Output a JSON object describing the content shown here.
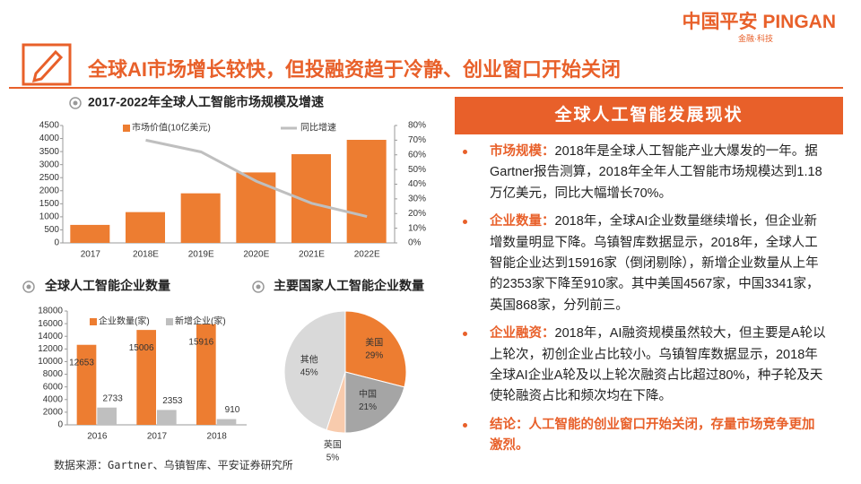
{
  "header": {
    "title": "全球AI市场增长较快，但投融资趋于冷静、创业窗口开始关闭",
    "logo": "中国平安 PINGAN",
    "logo_sub": "金融·科技"
  },
  "chart_data": [
    {
      "type": "bar",
      "title": "2017-2022年全球人工智能市场规模及增速",
      "categories": [
        "2017",
        "2018E",
        "2019E",
        "2020E",
        "2021E",
        "2022E"
      ],
      "series": [
        {
          "name": "市场价值(10亿美元)",
          "color": "#ED7D31",
          "values": [
            690,
            1180,
            1900,
            2700,
            3400,
            3950
          ]
        },
        {
          "name": "同比增速",
          "color": "#BFBFBF",
          "type": "line",
          "axis": "y2",
          "values": [
            null,
            70,
            62,
            42,
            27,
            18
          ]
        }
      ],
      "ylim": [
        0,
        4500
      ],
      "yticks": [
        0,
        500,
        1000,
        1500,
        2000,
        2500,
        3000,
        3500,
        4000,
        4500
      ],
      "y2lim": [
        0,
        80
      ],
      "y2ticks": [
        {
          "value": 0,
          "label": "0%"
        },
        {
          "value": 10,
          "label": "10%"
        },
        {
          "value": 20,
          "label": "20%"
        },
        {
          "value": 30,
          "label": "30%"
        },
        {
          "value": 40,
          "label": "40%"
        },
        {
          "value": 50,
          "label": "50%"
        },
        {
          "value": 60,
          "label": "60%"
        },
        {
          "value": 70,
          "label": "70%"
        },
        {
          "value": 80,
          "label": "80%"
        }
      ]
    },
    {
      "type": "bar",
      "title": "全球人工智能企业数量",
      "categories": [
        "2016",
        "2017",
        "2018"
      ],
      "series": [
        {
          "name": "企业数量(家)",
          "color": "#ED7D31",
          "values": [
            12653,
            15006,
            15916
          ]
        },
        {
          "name": "新增企业(家)",
          "color": "#BFBFBF",
          "values": [
            2733,
            2353,
            910
          ]
        }
      ],
      "ylim": [
        0,
        18000
      ],
      "yticks": [
        0,
        2000,
        4000,
        6000,
        8000,
        10000,
        12000,
        14000,
        16000,
        18000
      ],
      "data_labels": true
    },
    {
      "type": "pie",
      "title": "主要国家人工智能企业数量",
      "categories": [
        "美国",
        "中国",
        "英国",
        "其他"
      ],
      "values": [
        29,
        21,
        5,
        45
      ],
      "value_labels": [
        "29%",
        "21%",
        "5%",
        "45%"
      ],
      "colors": [
        "#ED7D31",
        "#A5A5A5",
        "#F8CBAD",
        "#D9D9D9"
      ]
    }
  ],
  "panel": {
    "title": "全球人工智能发展现状",
    "items": [
      {
        "label": "市场规模：",
        "text": "2018年是全球人工智能产业大爆发的一年。据Gartner报告测算，2018年全年人工智能市场规模达到1.18万亿美元，同比大幅增长70%。"
      },
      {
        "label": "企业数量：",
        "text": "2018年，全球AI企业数量继续增长，但企业新增数量明显下降。乌镇智库数据显示，2018年，全球人工智能企业达到15916家（倒闭剔除），新增企业数量从上年的2353家下降至910家。其中美国4567家，中国3341家，英国868家，分列前三。"
      },
      {
        "label": "企业融资：",
        "text": "2018年，AI融资规模虽然较大，但主要是A轮以上轮次，初创企业占比较小。乌镇智库数据显示，2018年全球AI企业A轮及以上轮次融资占比超过80%，种子轮及天使轮融资占比和频次均在下降。"
      },
      {
        "label": "结论：",
        "text": "人工智能的创业窗口开始关闭，存量市场竞争更加激烈。"
      }
    ]
  },
  "source": "数据来源：Gartner、乌镇智库、平安证券研究所"
}
